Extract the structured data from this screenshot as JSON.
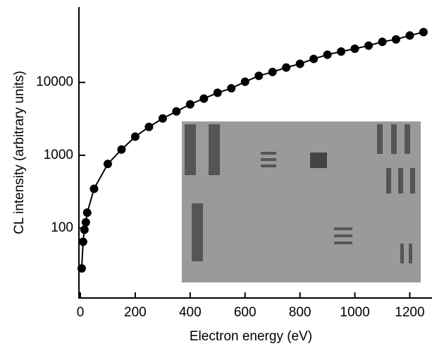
{
  "chart_data": {
    "type": "line",
    "xlabel": "Electron energy (eV)",
    "ylabel": "CL intensity (arbitrary units)",
    "x": [
      5,
      10,
      15,
      20,
      25,
      50,
      100,
      150,
      200,
      250,
      300,
      350,
      400,
      450,
      500,
      550,
      600,
      650,
      700,
      750,
      800,
      850,
      900,
      950,
      1000,
      1050,
      1100,
      1150,
      1200,
      1250
    ],
    "series": [
      {
        "color": "#000000",
        "values": [
          28,
          65,
          95,
          120,
          163,
          347,
          760,
          1200,
          1800,
          2450,
          3200,
          4000,
          5000,
          6000,
          7200,
          8300,
          10200,
          12300,
          13900,
          16000,
          18000,
          21000,
          24000,
          26500,
          29000,
          32000,
          36000,
          39000,
          44000,
          49000
        ]
      }
    ],
    "xlim": [
      0,
      1281
    ],
    "xticks": [
      0,
      200,
      400,
      600,
      800,
      1000,
      1200
    ],
    "ylim": [
      11,
      100000
    ],
    "yticks": [
      100,
      1000,
      10000
    ],
    "ylog": true,
    "grid": false
  }
}
